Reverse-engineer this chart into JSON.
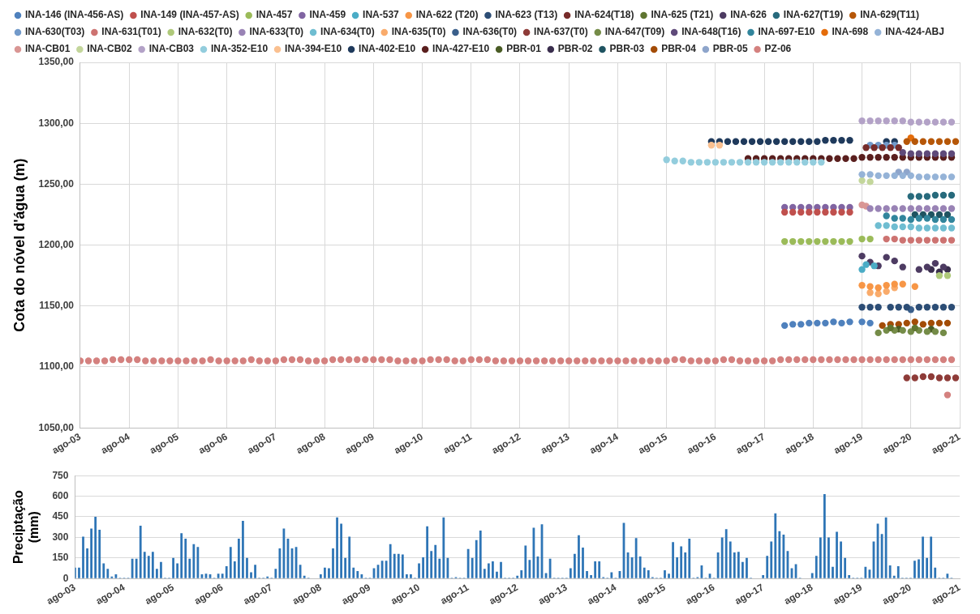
{
  "chart_data": [
    {
      "type": "scatter",
      "ylabel": "Cota do nóvel d'água (m)",
      "legend": "top",
      "grid": true,
      "marker": "circle",
      "xlim": [
        "2003-08",
        "2021-08"
      ],
      "xticks": [
        {
          "value": "2003-08",
          "label": "ago-03"
        },
        {
          "value": "2004-08",
          "label": "ago-04"
        },
        {
          "value": "2005-08",
          "label": "ago-05"
        },
        {
          "value": "2006-08",
          "label": "ago-06"
        },
        {
          "value": "2007-08",
          "label": "ago-07"
        },
        {
          "value": "2008-08",
          "label": "ago-08"
        },
        {
          "value": "2009-08",
          "label": "ago-09"
        },
        {
          "value": "2010-08",
          "label": "ago-10"
        },
        {
          "value": "2011-08",
          "label": "ago-11"
        },
        {
          "value": "2012-08",
          "label": "ago-12"
        },
        {
          "value": "2013-08",
          "label": "ago-13"
        },
        {
          "value": "2014-08",
          "label": "ago-14"
        },
        {
          "value": "2015-08",
          "label": "ago-15"
        },
        {
          "value": "2016-08",
          "label": "ago-16"
        },
        {
          "value": "2017-08",
          "label": "ago-17"
        },
        {
          "value": "2018-08",
          "label": "ago-18"
        },
        {
          "value": "2019-08",
          "label": "ago-19"
        },
        {
          "value": "2020-08",
          "label": "ago-20"
        },
        {
          "value": "2021-08",
          "label": "ago-21"
        }
      ],
      "ylim": [
        1050,
        1350
      ],
      "yticks": [
        {
          "value": 1050,
          "label": "1050,00"
        },
        {
          "value": 1100,
          "label": "1100,00"
        },
        {
          "value": 1150,
          "label": "1150,00"
        },
        {
          "value": 1200,
          "label": "1200,00"
        },
        {
          "value": 1250,
          "label": "1250,00"
        },
        {
          "value": 1300,
          "label": "1300,00"
        },
        {
          "value": 1350,
          "label": "1350,00"
        }
      ],
      "series": [
        {
          "name": "INA-146 (INA-456-AS)",
          "color": "#4f81bd",
          "x": [
            "2018-01",
            "2018-03",
            "2018-05",
            "2018-07",
            "2018-09",
            "2018-11",
            "2019-01",
            "2019-03",
            "2019-05",
            "2019-08",
            "2019-10"
          ],
          "values": [
            1134,
            1135,
            1135,
            1136,
            1136,
            1136,
            1137,
            1136,
            1137,
            1137,
            1136
          ]
        },
        {
          "name": "INA-149 (INA-457-AS)",
          "color": "#c0504d",
          "x": [
            "2018-01",
            "2018-03",
            "2018-05",
            "2018-07",
            "2018-09",
            "2018-11",
            "2019-01",
            "2019-03",
            "2019-05"
          ],
          "values": [
            1227,
            1227,
            1227,
            1227,
            1227,
            1227,
            1227,
            1227,
            1227
          ]
        },
        {
          "name": "INA-457",
          "color": "#9bbb59",
          "x": [
            "2018-01",
            "2018-03",
            "2018-05",
            "2018-07",
            "2018-09",
            "2018-11",
            "2019-01",
            "2019-03",
            "2019-05",
            "2019-08",
            "2019-10"
          ],
          "values": [
            1203,
            1203,
            1203,
            1203,
            1203,
            1203,
            1203,
            1203,
            1203,
            1205,
            1205
          ]
        },
        {
          "name": "INA-459",
          "color": "#8064a2",
          "x": [
            "2018-01",
            "2018-03",
            "2018-05",
            "2018-07",
            "2018-09",
            "2018-11",
            "2019-01",
            "2019-03",
            "2019-05"
          ],
          "values": [
            1231,
            1231,
            1231,
            1231,
            1231,
            1231,
            1231,
            1231,
            1231
          ]
        },
        {
          "name": "INA-537",
          "color": "#4bacc6",
          "x": [
            "2019-08",
            "2019-09",
            "2019-11"
          ],
          "values": [
            1180,
            1184,
            1183
          ]
        },
        {
          "name": "INA-622 (T20)",
          "color": "#f79646",
          "x": [
            "2019-08",
            "2019-10",
            "2019-12",
            "2020-02",
            "2020-04",
            "2020-06",
            "2020-09"
          ],
          "values": [
            1167,
            1166,
            1165,
            1167,
            1168,
            1168,
            1166
          ]
        },
        {
          "name": "INA-623 (T13)",
          "color": "#2c4d75",
          "x": [
            "2019-08",
            "2019-10",
            "2019-12",
            "2020-03",
            "2020-05",
            "2020-07",
            "2020-10",
            "2020-12",
            "2021-02",
            "2021-04",
            "2021-06"
          ],
          "values": [
            1149,
            1149,
            1149,
            1149,
            1149,
            1149,
            1149,
            1149,
            1149,
            1149,
            1149
          ]
        },
        {
          "name": "INA-624(T18)",
          "color": "#772c2a",
          "x": [
            "2019-09",
            "2019-11",
            "2020-01",
            "2020-03",
            "2020-05"
          ],
          "values": [
            1280,
            1280,
            1280,
            1280,
            1280
          ]
        },
        {
          "name": "INA-625 (T21)",
          "color": "#5f7530",
          "x": [
            "2020-03",
            "2020-09"
          ],
          "values": [
            1132,
            1132
          ]
        },
        {
          "name": "INA-626",
          "color": "#4d3b62",
          "x": [
            "2019-08",
            "2019-10",
            "2019-12",
            "2020-02",
            "2020-04",
            "2020-06",
            "2020-10",
            "2020-12",
            "2021-02",
            "2021-04"
          ],
          "values": [
            1191,
            1186,
            1183,
            1190,
            1187,
            1182,
            1180,
            1182,
            1185,
            1182
          ]
        },
        {
          "name": "INA-627(T19)",
          "color": "#276a7c",
          "x": [
            "2020-08",
            "2020-10",
            "2020-12",
            "2021-02",
            "2021-04",
            "2021-06"
          ],
          "values": [
            1240,
            1240,
            1240,
            1241,
            1241,
            1241
          ]
        },
        {
          "name": "INA-629(T11)",
          "color": "#b65708",
          "x": [
            "2020-07",
            "2020-09",
            "2020-11",
            "2021-01",
            "2021-03",
            "2021-05",
            "2021-07"
          ],
          "values": [
            1285,
            1285,
            1285,
            1285,
            1285,
            1285,
            1285
          ]
        },
        {
          "name": "INA-630(T03)",
          "color": "#729aca",
          "x": [
            "2019-10",
            "2019-12",
            "2020-02",
            "2020-04"
          ],
          "values": [
            1282,
            1282,
            1282,
            1282
          ]
        },
        {
          "name": "INA-631(T01)",
          "color": "#cd7371",
          "x": [
            "2020-02",
            "2020-04",
            "2020-06",
            "2020-08",
            "2020-10",
            "2020-12",
            "2021-02",
            "2021-04",
            "2021-06"
          ],
          "values": [
            1205,
            1205,
            1204,
            1204,
            1204,
            1204,
            1204,
            1204,
            1204
          ]
        },
        {
          "name": "INA-632(T0)",
          "color": "#afc97a",
          "x": [
            "2021-03",
            "2021-05"
          ],
          "values": [
            1175,
            1175
          ]
        },
        {
          "name": "INA-633(T0)",
          "color": "#9983b5",
          "x": [
            "2019-10",
            "2019-12",
            "2020-02",
            "2020-04",
            "2020-06",
            "2020-08",
            "2020-10",
            "2020-12",
            "2021-02",
            "2021-04",
            "2021-06"
          ],
          "values": [
            1230,
            1230,
            1230,
            1230,
            1230,
            1230,
            1230,
            1230,
            1230,
            1230,
            1230
          ]
        },
        {
          "name": "INA-634(T0)",
          "color": "#6fbdd1",
          "x": [
            "2019-12",
            "2020-02",
            "2020-04",
            "2020-06",
            "2020-08",
            "2020-10",
            "2020-12",
            "2021-02",
            "2021-04",
            "2021-06"
          ],
          "values": [
            1216,
            1216,
            1215,
            1215,
            1215,
            1214,
            1214,
            1214,
            1214,
            1214
          ]
        },
        {
          "name": "INA-635(T0)",
          "color": "#f9ab6b",
          "x": [
            "2019-10",
            "2019-12",
            "2020-02",
            "2020-04"
          ],
          "values": [
            1161,
            1160,
            1162,
            1165
          ]
        },
        {
          "name": "INA-636(T0)",
          "color": "#3a5f8b",
          "x": [
            "2020-08"
          ],
          "values": [
            1147
          ]
        },
        {
          "name": "INA-637(T0)",
          "color": "#8e3b38",
          "x": [
            "2020-07",
            "2020-09",
            "2020-11",
            "2021-01",
            "2021-03",
            "2021-05",
            "2021-07"
          ],
          "values": [
            1091,
            1091,
            1092,
            1092,
            1091,
            1091,
            1091
          ]
        },
        {
          "name": "INA-647(T09)",
          "color": "#758c48",
          "x": [
            "2019-12",
            "2020-02",
            "2020-04",
            "2020-06",
            "2020-08",
            "2020-10",
            "2020-12",
            "2021-02",
            "2021-04"
          ],
          "values": [
            1128,
            1130,
            1130,
            1130,
            1129,
            1130,
            1129,
            1129,
            1128
          ]
        },
        {
          "name": "INA-648(T16)",
          "color": "#5f4a7a",
          "x": [
            "2020-06",
            "2020-08",
            "2020-10",
            "2020-12",
            "2021-02",
            "2021-04",
            "2021-06"
          ],
          "values": [
            1276,
            1275,
            1275,
            1275,
            1275,
            1275,
            1275
          ]
        },
        {
          "name": "INA-697-E10",
          "color": "#31859c",
          "x": [
            "2020-02",
            "2020-04",
            "2020-06",
            "2020-08",
            "2020-10",
            "2020-12",
            "2021-02",
            "2021-04",
            "2021-06"
          ],
          "values": [
            1224,
            1222,
            1222,
            1221,
            1222,
            1222,
            1221,
            1221,
            1221
          ]
        },
        {
          "name": "INA-698",
          "color": "#e46c0a",
          "x": [
            "2020-08"
          ],
          "values": [
            1288
          ]
        },
        {
          "name": "INA-424-ABJ",
          "color": "#95b3d7",
          "x": [
            "2019-08",
            "2019-10",
            "2019-12",
            "2020-02",
            "2020-04",
            "2020-06",
            "2020-08",
            "2020-10",
            "2020-12",
            "2021-02",
            "2021-04",
            "2021-06"
          ],
          "values": [
            1258,
            1258,
            1257,
            1257,
            1257,
            1257,
            1257,
            1256,
            1256,
            1256,
            1256,
            1256
          ]
        },
        {
          "name": "INA-CB01",
          "color": "#d99694",
          "x": [
            "2019-08",
            "2019-09"
          ],
          "values": [
            1233,
            1232
          ]
        },
        {
          "name": "INA-CB02",
          "color": "#c3d69b",
          "x": [
            "2019-08",
            "2019-10"
          ],
          "values": [
            1253,
            1252
          ]
        },
        {
          "name": "INA-CB03",
          "color": "#b3a2c7",
          "x": [
            "2019-08",
            "2019-10",
            "2019-12",
            "2020-02",
            "2020-04",
            "2020-06",
            "2020-08",
            "2020-10",
            "2020-12",
            "2021-02",
            "2021-04",
            "2021-06"
          ],
          "values": [
            1302,
            1302,
            1302,
            1302,
            1302,
            1302,
            1301,
            1301,
            1301,
            1301,
            1301,
            1301
          ]
        },
        {
          "name": "INA-352-E10",
          "color": "#93cddd",
          "x": [
            "2015-08",
            "2015-10",
            "2015-12",
            "2016-02",
            "2016-04",
            "2016-06",
            "2016-08",
            "2016-10",
            "2016-12",
            "2017-02",
            "2017-04",
            "2017-06",
            "2017-08",
            "2017-10",
            "2017-12",
            "2018-02",
            "2018-04",
            "2018-06",
            "2018-08",
            "2018-10"
          ],
          "values": [
            1270,
            1269,
            1269,
            1268,
            1268,
            1268,
            1268,
            1268,
            1268,
            1268,
            1268,
            1268,
            1268,
            1268,
            1268,
            1268,
            1268,
            1268,
            1268,
            1268
          ]
        },
        {
          "name": "INA-394-E10",
          "color": "#fac090",
          "x": [
            "2016-07",
            "2016-09"
          ],
          "values": [
            1282,
            1282
          ]
        },
        {
          "name": "INA-402-E10",
          "color": "#1f3a5c",
          "x": [
            "2016-07",
            "2016-09",
            "2016-11",
            "2017-01",
            "2017-03",
            "2017-05",
            "2017-07",
            "2017-09",
            "2017-11",
            "2018-01",
            "2018-03",
            "2018-05",
            "2018-07",
            "2018-09",
            "2018-11",
            "2019-01",
            "2019-03",
            "2019-05",
            "2020-02",
            "2020-04"
          ],
          "values": [
            1285,
            1285,
            1285,
            1285,
            1285,
            1285,
            1285,
            1285,
            1285,
            1285,
            1285,
            1285,
            1285,
            1285,
            1286,
            1286,
            1286,
            1286,
            1285,
            1285
          ]
        },
        {
          "name": "INA-427-E10",
          "color": "#5a1f1e",
          "x": [
            "2017-04",
            "2017-06",
            "2017-08",
            "2017-10",
            "2017-12",
            "2018-02",
            "2018-04",
            "2018-06",
            "2018-08",
            "2018-10",
            "2018-12",
            "2019-02",
            "2019-04",
            "2019-06",
            "2019-08",
            "2019-10",
            "2019-12",
            "2020-02",
            "2020-04",
            "2020-06",
            "2020-08",
            "2020-10",
            "2020-12",
            "2021-02",
            "2021-04",
            "2021-06"
          ],
          "values": [
            1271,
            1271,
            1271,
            1271,
            1271,
            1271,
            1271,
            1271,
            1271,
            1271,
            1271,
            1271,
            1271,
            1271,
            1272,
            1272,
            1272,
            1272,
            1272,
            1272,
            1272,
            1272,
            1272,
            1272,
            1272,
            1272
          ]
        },
        {
          "name": "PBR-01",
          "color": "#4a5c25",
          "x": [
            "2020-05",
            "2021-01"
          ],
          "values": [
            1131,
            1131
          ]
        },
        {
          "name": "PBR-02",
          "color": "#3a2e4d",
          "x": [
            "2021-01",
            "2021-03",
            "2021-05"
          ],
          "values": [
            1180,
            1178,
            1180
          ]
        },
        {
          "name": "PBR-03",
          "color": "#1f5361",
          "x": [
            "2020-09",
            "2020-11",
            "2021-01",
            "2021-03",
            "2021-05"
          ],
          "values": [
            1225,
            1225,
            1225,
            1225,
            1225
          ]
        },
        {
          "name": "PBR-04",
          "color": "#a34c06",
          "x": [
            "2020-01",
            "2020-03",
            "2020-05",
            "2020-07",
            "2020-09",
            "2020-11",
            "2021-01",
            "2021-03",
            "2021-05"
          ],
          "values": [
            1134,
            1135,
            1135,
            1136,
            1137,
            1135,
            1136,
            1136,
            1136
          ]
        },
        {
          "name": "PBR-05",
          "color": "#8ea5cb",
          "x": [
            "2020-05",
            "2020-07"
          ],
          "values": [
            1260,
            1260
          ]
        },
        {
          "name": "PZ-06",
          "color": "#d4817f",
          "x": [
            "2003-08",
            "2003-10",
            "2003-12",
            "2004-02",
            "2004-04",
            "2004-06",
            "2004-08",
            "2004-10",
            "2004-12",
            "2005-02",
            "2005-04",
            "2005-06",
            "2005-08",
            "2005-10",
            "2005-12",
            "2006-02",
            "2006-04",
            "2006-06",
            "2006-08",
            "2006-10",
            "2006-12",
            "2007-02",
            "2007-04",
            "2007-06",
            "2007-08",
            "2007-10",
            "2007-12",
            "2008-02",
            "2008-04",
            "2008-06",
            "2008-08",
            "2008-10",
            "2008-12",
            "2009-02",
            "2009-04",
            "2009-06",
            "2009-08",
            "2009-10",
            "2009-12",
            "2010-02",
            "2010-04",
            "2010-06",
            "2010-08",
            "2010-10",
            "2010-12",
            "2011-02",
            "2011-04",
            "2011-06",
            "2011-08",
            "2011-10",
            "2011-12",
            "2012-02",
            "2012-04",
            "2012-06",
            "2012-08",
            "2012-10",
            "2012-12",
            "2013-02",
            "2013-04",
            "2013-06",
            "2013-08",
            "2013-10",
            "2013-12",
            "2014-02",
            "2014-04",
            "2014-06",
            "2014-08",
            "2014-10",
            "2014-12",
            "2015-02",
            "2015-04",
            "2015-06",
            "2015-08",
            "2015-10",
            "2015-12",
            "2016-02",
            "2016-04",
            "2016-06",
            "2016-08",
            "2016-10",
            "2016-12",
            "2017-02",
            "2017-04",
            "2017-06",
            "2017-08",
            "2017-10",
            "2017-12",
            "2018-02",
            "2018-04",
            "2018-06",
            "2018-08",
            "2018-10",
            "2018-12",
            "2019-02",
            "2019-04",
            "2019-06",
            "2019-08",
            "2019-10",
            "2019-12",
            "2020-02",
            "2020-04",
            "2020-06",
            "2020-08",
            "2020-10",
            "2020-12",
            "2021-02",
            "2021-04",
            "2021-06",
            "2021-05"
          ],
          "values": [
            1105,
            1105,
            1105,
            1105,
            1106,
            1106,
            1106,
            1106,
            1105,
            1105,
            1105,
            1105,
            1105,
            1105,
            1105,
            1105,
            1106,
            1105,
            1105,
            1105,
            1105,
            1106,
            1105,
            1105,
            1105,
            1106,
            1106,
            1106,
            1105,
            1105,
            1105,
            1106,
            1106,
            1106,
            1106,
            1106,
            1106,
            1106,
            1106,
            1105,
            1105,
            1105,
            1105,
            1106,
            1106,
            1106,
            1105,
            1105,
            1106,
            1106,
            1106,
            1105,
            1105,
            1105,
            1105,
            1105,
            1105,
            1105,
            1105,
            1105,
            1105,
            1105,
            1105,
            1105,
            1105,
            1105,
            1105,
            1105,
            1105,
            1105,
            1105,
            1105,
            1105,
            1106,
            1106,
            1105,
            1105,
            1105,
            1105,
            1106,
            1106,
            1105,
            1105,
            1105,
            1105,
            1105,
            1106,
            1106,
            1106,
            1106,
            1106,
            1106,
            1106,
            1106,
            1106,
            1106,
            1106,
            1106,
            1106,
            1106,
            1106,
            1106,
            1106,
            1106,
            1106,
            1106,
            1106,
            1106,
            1077
          ]
        }
      ]
    },
    {
      "type": "bar",
      "ylabel": "Preciptação (mm)",
      "grid": "y",
      "color": "#2e75b6",
      "xlim": [
        "2003-08",
        "2021-08"
      ],
      "xticks": [
        {
          "value": "2003-08",
          "label": "ago-03"
        },
        {
          "value": "2004-08",
          "label": "ago-04"
        },
        {
          "value": "2005-08",
          "label": "ago-05"
        },
        {
          "value": "2006-08",
          "label": "ago-06"
        },
        {
          "value": "2007-08",
          "label": "ago-07"
        },
        {
          "value": "2008-08",
          "label": "ago-08"
        },
        {
          "value": "2009-08",
          "label": "ago-09"
        },
        {
          "value": "2010-08",
          "label": "ago-10"
        },
        {
          "value": "2011-08",
          "label": "ago-11"
        },
        {
          "value": "2012-08",
          "label": "ago-12"
        },
        {
          "value": "2013-08",
          "label": "ago-13"
        },
        {
          "value": "2014-08",
          "label": "ago-14"
        },
        {
          "value": "2015-08",
          "label": "ago-15"
        },
        {
          "value": "2016-08",
          "label": "ago-16"
        },
        {
          "value": "2017-08",
          "label": "ago-17"
        },
        {
          "value": "2018-08",
          "label": "ago-18"
        },
        {
          "value": "2019-08",
          "label": "ago-19"
        },
        {
          "value": "2020-08",
          "label": "ago-20"
        },
        {
          "value": "2021-08",
          "label": "ago-21"
        }
      ],
      "ylim": [
        0,
        750
      ],
      "yticks": [
        0,
        150,
        300,
        450,
        600,
        750
      ],
      "x": [
        "2003-08",
        "2003-09",
        "2003-10",
        "2003-11",
        "2003-12",
        "2004-01",
        "2004-02",
        "2004-03",
        "2004-04",
        "2004-05",
        "2004-06",
        "2004-07",
        "2004-08",
        "2004-09",
        "2004-10",
        "2004-11",
        "2004-12",
        "2005-01",
        "2005-02",
        "2005-03",
        "2005-04",
        "2005-05",
        "2005-06",
        "2005-07",
        "2005-08",
        "2005-09",
        "2005-10",
        "2005-11",
        "2005-12",
        "2006-01",
        "2006-02",
        "2006-03",
        "2006-04",
        "2006-05",
        "2006-06",
        "2006-07",
        "2006-08",
        "2006-09",
        "2006-10",
        "2006-11",
        "2006-12",
        "2007-01",
        "2007-02",
        "2007-03",
        "2007-04",
        "2007-05",
        "2007-06",
        "2007-07",
        "2007-08",
        "2007-09",
        "2007-10",
        "2007-11",
        "2007-12",
        "2008-01",
        "2008-02",
        "2008-03",
        "2008-04",
        "2008-05",
        "2008-06",
        "2008-07",
        "2008-08",
        "2008-09",
        "2008-10",
        "2008-11",
        "2008-12",
        "2009-01",
        "2009-02",
        "2009-03",
        "2009-04",
        "2009-05",
        "2009-06",
        "2009-07",
        "2009-08",
        "2009-09",
        "2009-10",
        "2009-11",
        "2009-12",
        "2010-01",
        "2010-02",
        "2010-03",
        "2010-04",
        "2010-05",
        "2010-06",
        "2010-07",
        "2010-08",
        "2010-09",
        "2010-10",
        "2010-11",
        "2010-12",
        "2011-01",
        "2011-02",
        "2011-03",
        "2011-04",
        "2011-05",
        "2011-06",
        "2011-07",
        "2011-08",
        "2011-09",
        "2011-10",
        "2011-11",
        "2011-12",
        "2012-01",
        "2012-02",
        "2012-03",
        "2012-04",
        "2012-05",
        "2012-06",
        "2012-07",
        "2012-08",
        "2012-09",
        "2012-10",
        "2012-11",
        "2012-12",
        "2013-01",
        "2013-02",
        "2013-03",
        "2013-04",
        "2013-05",
        "2013-06",
        "2013-07",
        "2013-08",
        "2013-09",
        "2013-10",
        "2013-11",
        "2013-12",
        "2014-01",
        "2014-02",
        "2014-03",
        "2014-04",
        "2014-05",
        "2014-06",
        "2014-07",
        "2014-08",
        "2014-09",
        "2014-10",
        "2014-11",
        "2014-12",
        "2015-01",
        "2015-02",
        "2015-03",
        "2015-04",
        "2015-05",
        "2015-06",
        "2015-07",
        "2015-08",
        "2015-09",
        "2015-10",
        "2015-11",
        "2015-12",
        "2016-01",
        "2016-02",
        "2016-03",
        "2016-04",
        "2016-05",
        "2016-06",
        "2016-07",
        "2016-08",
        "2016-09",
        "2016-10",
        "2016-11",
        "2016-12",
        "2017-01",
        "2017-02",
        "2017-03",
        "2017-04",
        "2017-05",
        "2017-06",
        "2017-07",
        "2017-08",
        "2017-09",
        "2017-10",
        "2017-11",
        "2017-12",
        "2018-01",
        "2018-02",
        "2018-03",
        "2018-04",
        "2018-05",
        "2018-06",
        "2018-07",
        "2018-08",
        "2018-09",
        "2018-10",
        "2018-11",
        "2018-12",
        "2019-01",
        "2019-02",
        "2019-03",
        "2019-04",
        "2019-05",
        "2019-06",
        "2019-07",
        "2019-08",
        "2019-09",
        "2019-10",
        "2019-11",
        "2019-12",
        "2020-01",
        "2020-02",
        "2020-03",
        "2020-04",
        "2020-05",
        "2020-06",
        "2020-07",
        "2020-08",
        "2020-09",
        "2020-10",
        "2020-11",
        "2020-12",
        "2021-01",
        "2021-02",
        "2021-03",
        "2021-04",
        "2021-05",
        "2021-06",
        "2021-07"
      ],
      "values": [
        80,
        80,
        305,
        220,
        365,
        450,
        355,
        110,
        70,
        15,
        30,
        5,
        5,
        5,
        145,
        145,
        385,
        195,
        165,
        195,
        70,
        120,
        5,
        5,
        150,
        110,
        330,
        290,
        145,
        250,
        230,
        30,
        35,
        30,
        5,
        35,
        35,
        90,
        230,
        125,
        290,
        420,
        150,
        45,
        100,
        5,
        5,
        15,
        5,
        70,
        220,
        365,
        290,
        220,
        230,
        100,
        20,
        5,
        0,
        0,
        30,
        80,
        75,
        220,
        445,
        400,
        150,
        305,
        80,
        55,
        30,
        5,
        5,
        75,
        100,
        130,
        130,
        250,
        180,
        180,
        175,
        30,
        30,
        5,
        110,
        155,
        380,
        200,
        245,
        145,
        445,
        150,
        5,
        10,
        5,
        5,
        215,
        150,
        280,
        350,
        70,
        110,
        125,
        50,
        120,
        5,
        5,
        5,
        20,
        60,
        240,
        135,
        370,
        160,
        395,
        40,
        145,
        5,
        5,
        5,
        5,
        75,
        180,
        315,
        225,
        55,
        25,
        125,
        125,
        10,
        5,
        45,
        5,
        55,
        405,
        190,
        155,
        295,
        160,
        80,
        60,
        10,
        5,
        5,
        60,
        35,
        265,
        155,
        235,
        190,
        290,
        5,
        10,
        95,
        5,
        35,
        5,
        190,
        300,
        360,
        270,
        190,
        195,
        120,
        150,
        5,
        0,
        0,
        25,
        165,
        270,
        475,
        345,
        320,
        200,
        75,
        105,
        5,
        0,
        0,
        40,
        165,
        300,
        615,
        300,
        85,
        340,
        270,
        150,
        25,
        5,
        5,
        5,
        85,
        65,
        270,
        400,
        325,
        445,
        95,
        20,
        90,
        5,
        5,
        5,
        130,
        140,
        305,
        150,
        305,
        80,
        5,
        5,
        35,
        5,
        0
      ]
    }
  ]
}
